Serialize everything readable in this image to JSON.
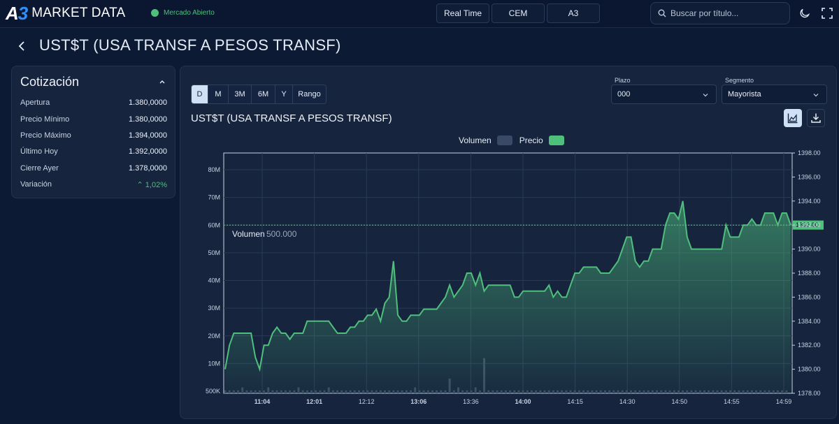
{
  "app": {
    "logo_a": "A",
    "logo_3": "3",
    "logo_text": "MARKET DATA",
    "market_status": "Mercado Abierto"
  },
  "nav": {
    "buttons": [
      "Real Time",
      "CEM",
      "A3"
    ],
    "search_placeholder": "Buscar por título..."
  },
  "page": {
    "title": "UST$T (USA TRANSF A PESOS TRANSF)"
  },
  "quote": {
    "title": "Cotización",
    "rows": [
      {
        "label": "Apertura",
        "value": "1.380,0000"
      },
      {
        "label": "Precio Mínimo",
        "value": "1.380,0000"
      },
      {
        "label": "Precio Máximo",
        "value": "1.394,0000"
      },
      {
        "label": "Último Hoy",
        "value": "1.392,0000"
      },
      {
        "label": "Cierre Ayer",
        "value": "1.378,0000"
      },
      {
        "label": "Variación",
        "value": "⌃ 1,02%"
      }
    ]
  },
  "chart_panel": {
    "ranges": [
      "D",
      "M",
      "3M",
      "6M",
      "Y",
      "Rango"
    ],
    "active_range": "D",
    "plazo_label": "Plazo",
    "plazo_value": "000",
    "segmento_label": "Segmento",
    "segmento_value": "Mayorista",
    "title": "UST$T (USA TRANSF A PESOS TRANSF)",
    "legend_volumen": "Volumen",
    "legend_precio": "Precio",
    "volume_readout_label": "Volumen",
    "volume_readout_value": "500.000"
  },
  "colors": {
    "accent_green": "#4fbf7c",
    "volume_swatch": "#394a66",
    "background": "#0c1a33",
    "panel": "#16243e"
  },
  "chart_data": {
    "type": "line",
    "x_tick_labels": [
      "11:04",
      "12:01",
      "12:12",
      "13:06",
      "13:36",
      "14:00",
      "14:15",
      "14:30",
      "14:50",
      "14:55",
      "14:59"
    ],
    "x_tick_bold": [
      true,
      true,
      false,
      true,
      false,
      true,
      false,
      false,
      false,
      false,
      false
    ],
    "y_left_ticks": [
      "500K",
      "10M",
      "20M",
      "30M",
      "40M",
      "50M",
      "60M",
      "70M",
      "80M"
    ],
    "y_right_ticks": [
      "1378.00",
      "1380.00",
      "1382.00",
      "1384.00",
      "1386.00",
      "1388.00",
      "1390.00",
      "1392.00",
      "1394.00",
      "1396.00",
      "1398.00"
    ],
    "y_right_range": [
      1378,
      1398
    ],
    "last_price_label": "1392.00",
    "last_price": 1392,
    "grid": true,
    "series": [
      {
        "name": "Precio",
        "values": [
          1380,
          1382,
          1383,
          1383,
          1383,
          1383,
          1383,
          1381,
          1380,
          1382,
          1382,
          1383,
          1383.5,
          1383,
          1383,
          1382.5,
          1383,
          1383,
          1383,
          1384,
          1384,
          1384,
          1384,
          1384,
          1384,
          1383.5,
          1383,
          1383,
          1383,
          1383.5,
          1383.5,
          1384,
          1384,
          1384.5,
          1384.5,
          1385,
          1384,
          1385.5,
          1386,
          1389,
          1384.5,
          1384,
          1384,
          1384.5,
          1384.5,
          1384.5,
          1385,
          1385,
          1385,
          1385,
          1385.5,
          1386,
          1387,
          1386,
          1386.5,
          1387,
          1388,
          1388,
          1387,
          1388,
          1386.5,
          1387,
          1387,
          1387,
          1387,
          1387,
          1387,
          1386,
          1386,
          1386.5,
          1386.5,
          1386.5,
          1386.5,
          1386.5,
          1386.5,
          1387,
          1386,
          1386.5,
          1386,
          1386,
          1387,
          1388,
          1388,
          1388.5,
          1388.5,
          1388.5,
          1388.5,
          1388,
          1388,
          1388,
          1388.5,
          1389,
          1390,
          1391,
          1391,
          1389,
          1388.5,
          1389,
          1389,
          1390,
          1390,
          1390,
          1392,
          1393,
          1393,
          1392.5,
          1394,
          1391,
          1390,
          1390,
          1390,
          1390,
          1390,
          1390,
          1390,
          1390,
          1392,
          1391,
          1391,
          1391,
          1392,
          1392,
          1392.5,
          1392,
          1392,
          1393,
          1393,
          1393,
          1392,
          1393,
          1393,
          1392
        ],
        "color": "#4fbf7c"
      },
      {
        "name": "Volumen",
        "values": [
          0.1,
          0.1,
          0.1,
          0.1,
          0.2,
          0.1,
          0.1,
          0.1,
          0.1,
          0.1,
          0.2,
          0.1,
          0.1,
          0.1,
          0.1,
          0.1,
          0.1,
          0.2,
          0.1,
          0.1,
          0.1,
          0.1,
          0.1,
          0.1,
          0.2,
          0.1,
          0.1,
          0.1,
          0.1,
          0.1,
          0.1,
          0.1,
          0.1,
          0.1,
          0.1,
          0.1,
          0.1,
          0.1,
          0.1,
          0.1,
          0.1,
          0.1,
          0.1,
          0.1,
          0.2,
          0.1,
          0.1,
          0.1,
          0.1,
          0.1,
          0.1,
          0.1,
          0.5,
          0.1,
          0.2,
          0.1,
          0.1,
          0.1,
          0.2,
          0.1,
          1.2,
          0.1,
          0.1,
          0.1,
          0.1,
          0.1,
          0.1,
          0.1,
          0.1,
          0.1,
          0.1,
          0.1,
          0.1,
          0.1,
          0.1,
          0.1,
          0.1,
          0.1,
          0.1,
          0.1,
          0.1,
          0.1,
          0.1,
          0.1,
          0.1,
          0.1,
          0.1,
          0.1,
          0.1,
          0.1,
          0.1,
          0.1,
          0.1,
          0.1,
          0.1,
          0.1,
          0.1,
          0.1,
          0.1,
          0.1,
          0.1,
          0.1,
          0.1,
          0.1,
          0.1,
          0.1,
          0.1,
          0.1,
          0.1,
          0.1,
          0.1,
          0.1,
          0.1,
          0.1,
          0.1,
          0.1,
          0.1,
          0.1,
          0.1,
          0.1,
          0.1,
          0.1,
          0.1,
          0.1,
          0.1,
          0.1,
          0.1,
          0.1,
          0.1,
          0.1,
          0.1
        ],
        "color": "#394a66"
      }
    ]
  }
}
